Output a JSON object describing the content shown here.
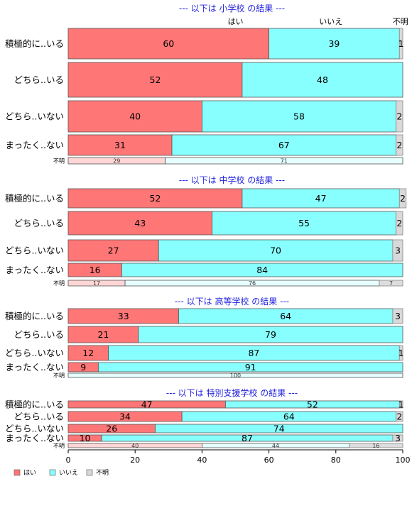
{
  "chart_data": {
    "type": "bar",
    "orientation": "horizontal-stacked-percent",
    "column_headers": [
      "はい",
      "いいえ",
      "不明"
    ],
    "series": [
      {
        "name": "はい",
        "color": "#ff7676"
      },
      {
        "name": "いいえ",
        "color": "#88ffff"
      },
      {
        "name": "不明",
        "color": "#d9d9d9"
      }
    ],
    "panels": [
      {
        "title": "--- 以下は 小学校 の結果 ---",
        "rows": [
          {
            "label": "積極的に..いる",
            "values": [
              60,
              39,
              1
            ],
            "labels": [
              "60",
              "39",
              "1"
            ]
          },
          {
            "label": "どちら..いる",
            "values": [
              52,
              48,
              0
            ],
            "labels": [
              "52",
              "48",
              ""
            ]
          },
          {
            "label": "どちら..いない",
            "values": [
              40,
              58,
              2
            ],
            "labels": [
              "40",
              "58",
              "2"
            ]
          },
          {
            "label": "まったく..ない",
            "values": [
              31,
              67,
              2
            ],
            "labels": [
              "31",
              "67",
              "2"
            ]
          },
          {
            "label": "不明",
            "values": [
              29,
              71,
              0
            ],
            "labels": [
              "29",
              "71",
              ""
            ],
            "small": true
          }
        ]
      },
      {
        "title": "--- 以下は 中学校 の結果 ---",
        "rows": [
          {
            "label": "積極的に..いる",
            "values": [
              52,
              47,
              2
            ],
            "labels": [
              "52",
              "47",
              "2"
            ]
          },
          {
            "label": "どちら..いる",
            "values": [
              43,
              55,
              2
            ],
            "labels": [
              "43",
              "55",
              "2"
            ]
          },
          {
            "label": "どちら..いない",
            "values": [
              27,
              70,
              3
            ],
            "labels": [
              "27",
              "70",
              "3"
            ]
          },
          {
            "label": "まったく..ない",
            "values": [
              16,
              84,
              0
            ],
            "labels": [
              "16",
              "84",
              ""
            ]
          },
          {
            "label": "不明",
            "values": [
              17,
              76,
              7
            ],
            "labels": [
              "17",
              "76",
              "7"
            ],
            "small": true
          }
        ]
      },
      {
        "title": "--- 以下は 高等学校 の結果 ---",
        "rows": [
          {
            "label": "積極的に..いる",
            "values": [
              33,
              64,
              3
            ],
            "labels": [
              "33",
              "64",
              "3"
            ]
          },
          {
            "label": "どちら..いる",
            "values": [
              21,
              79,
              0
            ],
            "labels": [
              "21",
              "79",
              ""
            ]
          },
          {
            "label": "どちら..いない",
            "values": [
              12,
              87,
              1
            ],
            "labels": [
              "12",
              "87",
              "1"
            ]
          },
          {
            "label": "まったく..ない",
            "values": [
              9,
              91,
              0
            ],
            "labels": [
              "9",
              "91",
              ""
            ]
          },
          {
            "label": "不明",
            "values": [
              0,
              100,
              0
            ],
            "labels": [
              "",
              "100",
              ""
            ],
            "small": true
          }
        ]
      },
      {
        "title": "--- 以下は 特別支援学校 の結果 ---",
        "rows": [
          {
            "label": "積極的に..いる",
            "values": [
              47,
              52,
              1
            ],
            "labels": [
              "47",
              "52",
              "1"
            ]
          },
          {
            "label": "どちら..いる",
            "values": [
              34,
              64,
              2
            ],
            "labels": [
              "34",
              "64",
              "2"
            ]
          },
          {
            "label": "どちら..いない",
            "values": [
              26,
              74,
              0
            ],
            "labels": [
              "26",
              "74",
              ""
            ]
          },
          {
            "label": "まったく..ない",
            "values": [
              10,
              87,
              3
            ],
            "labels": [
              "10",
              "87",
              "3"
            ]
          },
          {
            "label": "不明",
            "values": [
              40,
              44,
              16
            ],
            "labels": [
              "40",
              "44",
              "16"
            ],
            "small": true
          }
        ]
      }
    ],
    "x_ticks": [
      "0",
      "20",
      "40",
      "60",
      "80",
      "100"
    ],
    "xlim": [
      0,
      100
    ],
    "legend_position": "bottom-left",
    "legend": [
      "はい",
      "いいえ",
      "不明"
    ]
  }
}
